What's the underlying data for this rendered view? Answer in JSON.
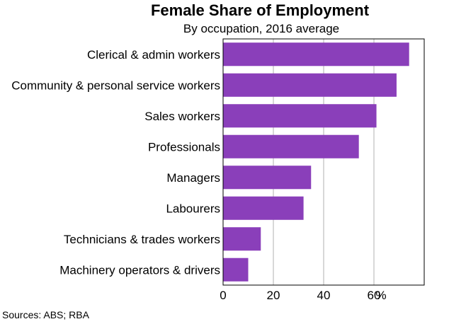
{
  "chart_data": {
    "type": "bar",
    "orientation": "horizontal",
    "title": "Female Share of Employment",
    "subtitle": "By occupation, 2016 average",
    "categories": [
      "Clerical & admin workers",
      "Community & personal service workers",
      "Sales workers",
      "Professionals",
      "Managers",
      "Labourers",
      "Technicians & trades workers",
      "Machinery operators & drivers"
    ],
    "values": [
      74,
      69,
      61,
      54,
      35,
      32,
      15,
      10
    ],
    "xlim": [
      0,
      80
    ],
    "xticks": [
      0,
      20,
      40,
      60
    ],
    "x_unit": "%",
    "grid": true,
    "bar_color": "#8a3fba"
  },
  "sources": "Sources:  ABS; RBA"
}
